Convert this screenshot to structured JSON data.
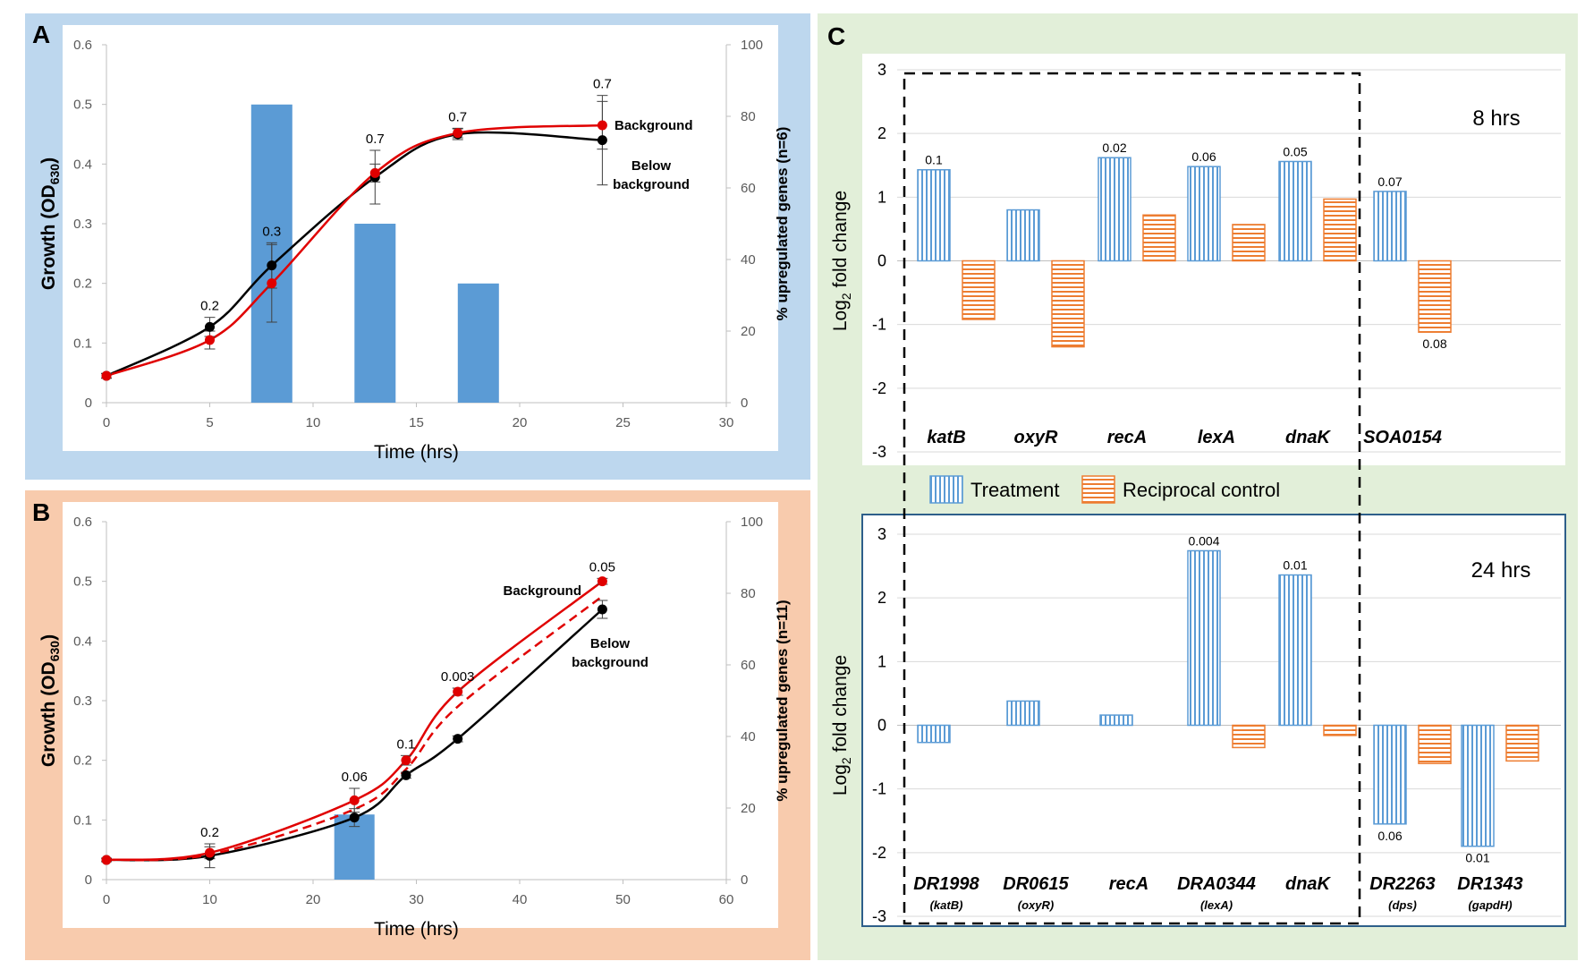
{
  "colors": {
    "panel_a_bg": "#bdd7ee",
    "panel_b_bg": "#f8cbad",
    "panel_c_bg": "#e2efd9",
    "bar_blue": "#5b9bd5",
    "series_black": "#000000",
    "series_red": "#e00000",
    "treatment": "#5b9bd5",
    "control": "#ed7d31",
    "box_24": "#2e5f8a"
  },
  "chart_data": [
    {
      "panel": "A",
      "type": "line",
      "xlabel": "Time (hrs)",
      "ylabel_main": "Growth (OD",
      "ylabel_sub": "630",
      "ylabel_end": ")",
      "y2label": "% upregulated genes (n=6)",
      "xlim": [
        0,
        30
      ],
      "xticks": [
        "0",
        "5",
        "10",
        "15",
        "20",
        "25",
        "30"
      ],
      "ylim": [
        0,
        0.6
      ],
      "yticks": [
        "0",
        "0.1",
        "0.2",
        "0.3",
        "0.4",
        "0.5",
        "0.6"
      ],
      "y2lim": [
        0,
        100
      ],
      "y2ticks": [
        "0",
        "20",
        "40",
        "60",
        "80",
        "100"
      ],
      "bars": [
        {
          "x": 8,
          "value": 83.3
        },
        {
          "x": 13,
          "value": 50
        },
        {
          "x": 18,
          "value": 33.3
        }
      ],
      "series": [
        {
          "name": "Below background",
          "color": "series_black",
          "x": [
            0,
            5,
            8,
            13,
            17,
            24
          ],
          "y": [
            0.045,
            0.127,
            0.23,
            0.378,
            0.45,
            0.44
          ],
          "err": [
            0.004,
            0.016,
            0.038,
            0.045,
            0.009,
            0.075
          ]
        },
        {
          "name": "Background",
          "color": "series_red",
          "x": [
            0,
            5,
            8,
            13,
            17,
            24
          ],
          "y": [
            0.045,
            0.105,
            0.2,
            0.385,
            0.452,
            0.465
          ],
          "err": [
            0.004,
            0.015,
            0.065,
            0.015,
            0.008,
            0.04
          ]
        }
      ],
      "pvalues": [
        {
          "x": 5,
          "label": "0.2"
        },
        {
          "x": 8,
          "label": "0.3"
        },
        {
          "x": 13,
          "label": "0.7"
        },
        {
          "x": 17,
          "label": "0.7"
        },
        {
          "x": 24,
          "label": "0.7"
        }
      ],
      "series_labels": {
        "background": "Background",
        "below_1": "Below",
        "below_2": "background"
      }
    },
    {
      "panel": "B",
      "type": "line",
      "xlabel": "Time (hrs)",
      "ylabel_main": "Growth (OD",
      "ylabel_sub": "630",
      "ylabel_end": ")",
      "y2label": "% upregulated genes (n=11)",
      "xlim": [
        0,
        60
      ],
      "xticks": [
        "0",
        "10",
        "20",
        "30",
        "40",
        "50",
        "60"
      ],
      "ylim": [
        0,
        0.6
      ],
      "yticks": [
        "0",
        "0.1",
        "0.2",
        "0.3",
        "0.4",
        "0.5",
        "0.6"
      ],
      "y2lim": [
        0,
        100
      ],
      "y2ticks": [
        "0",
        "20",
        "40",
        "60",
        "80",
        "100"
      ],
      "bars": [
        {
          "x": 24,
          "value": 18.2
        }
      ],
      "series": [
        {
          "name": "Below background",
          "color": "series_black",
          "x": [
            0,
            10,
            24,
            29,
            34,
            48
          ],
          "y": [
            0.033,
            0.04,
            0.104,
            0.175,
            0.236,
            0.453
          ],
          "err": [
            0.003,
            0.02,
            0.015,
            0.005,
            0.005,
            0.015
          ]
        },
        {
          "name": "Background",
          "color": "series_red",
          "x": [
            0,
            10,
            24,
            29,
            34,
            48
          ],
          "y": [
            0.033,
            0.045,
            0.133,
            0.2,
            0.315,
            0.5
          ],
          "err": [
            0.003,
            0.01,
            0.02,
            0.008,
            0.006,
            0.005
          ]
        },
        {
          "name": "Background (dashed)",
          "color": "series_red",
          "dashed": true,
          "x": [
            0,
            10,
            24,
            29,
            34,
            48
          ],
          "y": [
            0.033,
            0.042,
            0.118,
            0.185,
            0.29,
            0.475
          ],
          "err": []
        }
      ],
      "pvalues": [
        {
          "x": 10,
          "label": "0.2"
        },
        {
          "x": 24,
          "label": "0.06"
        },
        {
          "x": 29,
          "label": "0.1"
        },
        {
          "x": 34,
          "label": "0.003"
        },
        {
          "x": 48,
          "label": "0.05"
        }
      ],
      "series_labels": {
        "background": "Background",
        "below_1": "Below",
        "below_2": "background"
      }
    },
    {
      "panel": "C",
      "type": "bar",
      "sections": [
        {
          "title": "8 hrs",
          "ylabel_pre": "Log",
          "ylabel_sub": "2",
          "ylabel_post": " fold change",
          "ylim": [
            -3,
            3
          ],
          "yticks": [
            "3",
            "2",
            "1",
            "0",
            "-1",
            "-2",
            "-3"
          ],
          "categories": [
            {
              "name": "katB",
              "sub": "",
              "treatment": 1.43,
              "control": -0.92,
              "p_treatment": "0.1",
              "p_control": ""
            },
            {
              "name": "oxyR",
              "sub": "",
              "treatment": 0.8,
              "control": -1.35,
              "p_treatment": "",
              "p_control": ""
            },
            {
              "name": "recA",
              "sub": "",
              "treatment": 1.62,
              "control": 0.72,
              "p_treatment": "0.02",
              "p_control": ""
            },
            {
              "name": "lexA",
              "sub": "",
              "treatment": 1.48,
              "control": 0.57,
              "p_treatment": "0.06",
              "p_control": ""
            },
            {
              "name": "dnaK",
              "sub": "",
              "treatment": 1.56,
              "control": 0.97,
              "p_treatment": "0.05",
              "p_control": ""
            },
            {
              "name": "SOA0154",
              "sub": "",
              "treatment": 1.09,
              "control": -1.12,
              "p_treatment": "0.07",
              "p_control": "0.08"
            }
          ]
        },
        {
          "title": "24 hrs",
          "ylabel_pre": "Log",
          "ylabel_sub": "2",
          "ylabel_post": " fold change",
          "ylim": [
            -3,
            3
          ],
          "yticks": [
            "3",
            "2",
            "1",
            "0",
            "-1",
            "-2",
            "-3"
          ],
          "categories": [
            {
              "name": "DR1998",
              "sub": "(katB)",
              "treatment": -0.27,
              "control": null,
              "p_treatment": "",
              "p_control": ""
            },
            {
              "name": "DR0615",
              "sub": "(oxyR)",
              "treatment": 0.38,
              "control": null,
              "p_treatment": "",
              "p_control": ""
            },
            {
              "name": "recA",
              "sub": "",
              "treatment": 0.16,
              "control": null,
              "p_treatment": "",
              "p_control": ""
            },
            {
              "name": "DRA0344",
              "sub": "(lexA)",
              "treatment": 2.74,
              "control": -0.35,
              "p_treatment": "0.004",
              "p_control": ""
            },
            {
              "name": "dnaK",
              "sub": "",
              "treatment": 2.36,
              "control": -0.16,
              "p_treatment": "0.01",
              "p_control": ""
            },
            {
              "name": "DR2263",
              "sub": "(dps)",
              "treatment": -1.55,
              "control": -0.6,
              "p_treatment": "0.06",
              "p_control": ""
            },
            {
              "name": "DR1343",
              "sub": "(gapdH)",
              "treatment": -1.9,
              "control": -0.56,
              "p_treatment": "0.01",
              "p_control": ""
            }
          ]
        }
      ],
      "legend": [
        {
          "label": "Treatment",
          "color": "treatment",
          "pattern": "vertical"
        },
        {
          "label": "Reciprocal control",
          "color": "control",
          "pattern": "horizontal"
        }
      ]
    }
  ],
  "panel_labels": {
    "a": "A",
    "b": "B",
    "c": "C"
  }
}
